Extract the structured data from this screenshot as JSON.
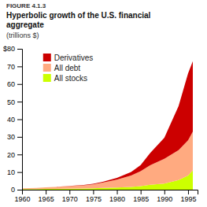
{
  "chart_data": {
    "type": "area",
    "stacked": true,
    "title": "Hyperbolic growth of the U.S. financial\naggregate",
    "subtitle": "(trillions $)",
    "annotations": [
      "FIGURE 4.1.3"
    ],
    "x": [
      1960,
      1963,
      1965,
      1967,
      1970,
      1973,
      1975,
      1977,
      1980,
      1983,
      1985,
      1987,
      1990,
      1993,
      1995,
      1996
    ],
    "series": [
      {
        "name": "All stocks",
        "color": "#ccff00",
        "values": [
          0.3,
          0.35,
          0.4,
          0.5,
          0.6,
          0.7,
          0.8,
          1.0,
          1.2,
          1.6,
          2.0,
          2.8,
          3.5,
          5.5,
          8.0,
          11.0
        ]
      },
      {
        "name": "All debt",
        "color": "#ffaa80",
        "values": [
          0.5,
          0.7,
          0.9,
          1.1,
          1.4,
          1.8,
          2.2,
          3.0,
          4.5,
          6.5,
          8.5,
          11.0,
          14.0,
          17.0,
          20.0,
          22.0
        ]
      },
      {
        "name": "Derivatives",
        "color": "#cc0000",
        "values": [
          0.0,
          0.0,
          0.0,
          0.0,
          0.1,
          0.2,
          0.3,
          0.5,
          1.0,
          2.0,
          3.5,
          7.0,
          12.0,
          25.0,
          38.0,
          40.0
        ]
      }
    ],
    "xlim": [
      1960,
      1997
    ],
    "xticks": [
      1960,
      1965,
      1970,
      1975,
      1980,
      1985,
      1990,
      1995
    ],
    "ylim": [
      0,
      80
    ],
    "yticks": [
      0,
      10,
      20,
      30,
      40,
      50,
      60,
      70,
      {
        "value": 80,
        "label": "$80"
      }
    ],
    "grid": false,
    "legend": "upper left"
  }
}
